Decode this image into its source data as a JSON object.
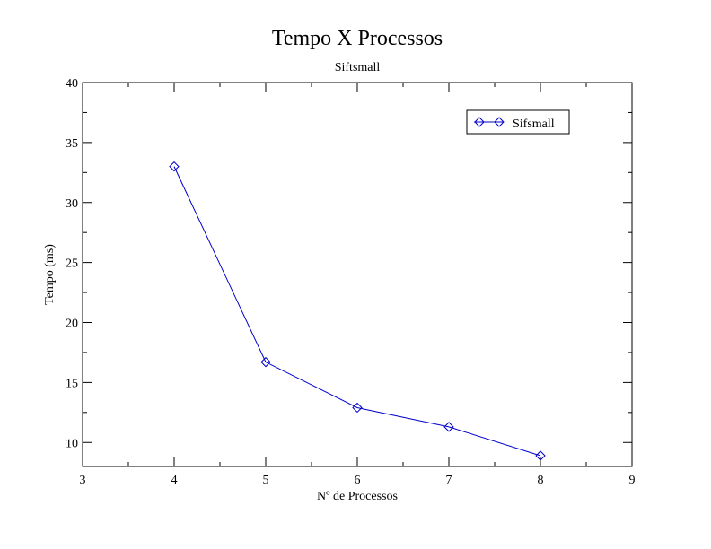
{
  "chart_data": {
    "type": "line",
    "title": "Tempo X Processos",
    "subtitle": "Siftsmall",
    "xlabel": "Nº de Processos",
    "ylabel": "Tempo (ms)",
    "xlim": [
      3,
      9
    ],
    "ylim": [
      8,
      40
    ],
    "x_ticks": [
      3,
      4,
      5,
      6,
      7,
      8,
      9
    ],
    "y_ticks": [
      10,
      15,
      20,
      25,
      30,
      35,
      40
    ],
    "x_minor_step": 0.5,
    "y_minor_step": 2.5,
    "grid": false,
    "legend_position": "top-right",
    "series": [
      {
        "name": "Sifsmall",
        "color": "#0000cc",
        "marker": "diamond",
        "x": [
          4,
          5,
          6,
          7,
          8
        ],
        "y": [
          33,
          16.7,
          12.9,
          11.3,
          8.9
        ]
      }
    ]
  }
}
